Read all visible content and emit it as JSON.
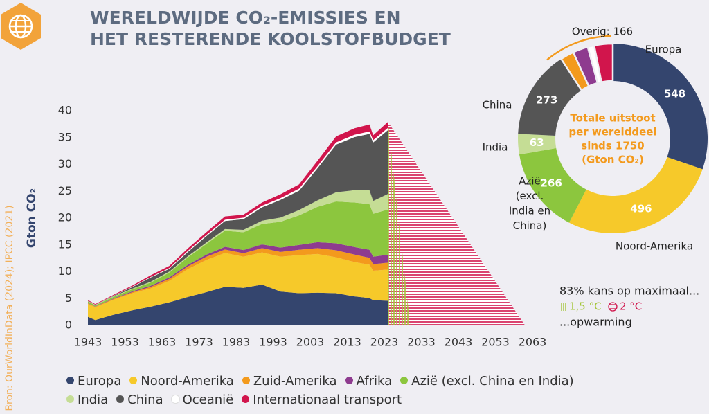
{
  "title": [
    "WERELDWIJDE CO₂-EMISSIES EN",
    "HET RESTERENDE KOOLSTOFBUDGET"
  ],
  "source": "Bron: OurWorldInData (2024); IPCC (2021)",
  "chart_data": [
    {
      "type": "area",
      "stacked": true,
      "y_label": "Gton CO₂",
      "xlim": [
        1943,
        2063
      ],
      "ylim": [
        0,
        40
      ],
      "xticks": [
        1943,
        1953,
        1963,
        1973,
        1983,
        1993,
        2003,
        2013,
        2023,
        2033,
        2043,
        2053,
        2063
      ],
      "yticks": [
        0,
        5,
        10,
        15,
        20,
        25,
        30,
        35,
        40
      ],
      "grid": false,
      "x": [
        1943,
        1945,
        1950,
        1955,
        1960,
        1965,
        1970,
        1975,
        1980,
        1985,
        1990,
        1995,
        2000,
        2005,
        2010,
        2015,
        2019,
        2020,
        2024
      ],
      "series": [
        {
          "name": "Europa",
          "color": "#34456e",
          "values": [
            1.6,
            1.0,
            2.0,
            2.8,
            3.5,
            4.3,
            5.3,
            6.2,
            7.2,
            7.0,
            7.6,
            6.3,
            6.0,
            6.1,
            6.0,
            5.4,
            5.1,
            4.7,
            4.6
          ]
        },
        {
          "name": "Noord-Amerika",
          "color": "#f6c92a",
          "values": [
            2.4,
            2.4,
            2.8,
            3.2,
            3.4,
            4.0,
            5.2,
            6.0,
            6.3,
            5.8,
            6.0,
            6.5,
            7.1,
            7.2,
            6.7,
            6.4,
            6.2,
            5.5,
            5.8
          ]
        },
        {
          "name": "Zuid-Amerika",
          "color": "#f39a1d",
          "values": [
            0.1,
            0.1,
            0.15,
            0.2,
            0.3,
            0.4,
            0.5,
            0.6,
            0.65,
            0.65,
            0.8,
            0.9,
            1.0,
            1.1,
            1.3,
            1.4,
            1.3,
            1.2,
            1.3
          ]
        },
        {
          "name": "Afrika",
          "color": "#8e3b8f",
          "values": [
            0.05,
            0.05,
            0.1,
            0.15,
            0.2,
            0.25,
            0.3,
            0.4,
            0.5,
            0.6,
            0.7,
            0.8,
            0.9,
            1.1,
            1.3,
            1.4,
            1.5,
            1.4,
            1.5
          ]
        },
        {
          "name": "Azië (excl. China en India)",
          "color": "#8cc63e",
          "values": [
            0.3,
            0.2,
            0.3,
            0.4,
            0.6,
            0.9,
            1.4,
            2.0,
            3.0,
            3.3,
            3.8,
            4.8,
            5.5,
            6.6,
            7.8,
            8.3,
            8.5,
            8.0,
            8.4
          ]
        },
        {
          "name": "India",
          "color": "#c5dd95",
          "values": [
            0.05,
            0.05,
            0.1,
            0.1,
            0.15,
            0.2,
            0.2,
            0.25,
            0.3,
            0.45,
            0.6,
            0.8,
            1.0,
            1.2,
            1.7,
            2.3,
            2.6,
            2.4,
            2.9
          ]
        },
        {
          "name": "China",
          "color": "#555555",
          "values": [
            0.05,
            0.03,
            0.08,
            0.3,
            0.8,
            0.5,
            0.8,
            1.2,
            1.5,
            2.0,
            2.5,
            3.3,
            3.6,
            6.0,
            8.9,
            9.9,
            10.5,
            10.9,
            11.9
          ]
        },
        {
          "name": "Oceanië",
          "color": "#ffffff",
          "values": [
            0.03,
            0.03,
            0.05,
            0.08,
            0.1,
            0.15,
            0.2,
            0.22,
            0.25,
            0.28,
            0.3,
            0.33,
            0.38,
            0.4,
            0.42,
            0.44,
            0.45,
            0.43,
            0.43
          ]
        },
        {
          "name": "Internationaal transport",
          "color": "#d1154c",
          "values": [
            0.15,
            0.1,
            0.15,
            0.2,
            0.3,
            0.4,
            0.45,
            0.5,
            0.6,
            0.55,
            0.6,
            0.7,
            0.8,
            1.0,
            1.1,
            1.2,
            1.3,
            0.9,
            1.1
          ]
        }
      ],
      "budgets": [
        {
          "name": "1,5 °C",
          "color": "#a5c63b",
          "hatch": "vertical",
          "x": [
            2024,
            2030
          ],
          "values": [
            37.9,
            0
          ]
        },
        {
          "name": "2 °C",
          "color": "#d1154c",
          "hatch": "horizontal",
          "x": [
            2024,
            2061
          ],
          "values": [
            37.9,
            0
          ]
        }
      ],
      "annotation": {
        "intro": "83% kans op maximaal...",
        "outro": "...opwarming"
      }
    },
    {
      "type": "donut",
      "center_lines": [
        "Totale uitstoot",
        "per werelddeel",
        "sinds 1750",
        "(Gton CO₂)"
      ],
      "slices": [
        {
          "name": "Europa",
          "value": 548,
          "color": "#34456e"
        },
        {
          "name": "Noord-Amerika",
          "value": 496,
          "color": "#f6c92a"
        },
        {
          "name": [
            "Azië",
            "(excl.",
            "India en",
            "China)"
          ],
          "value": 266,
          "color": "#8cc63e"
        },
        {
          "name": "India",
          "value": 63,
          "color": "#c5dd95"
        },
        {
          "name": "China",
          "value": 273,
          "color": "#555555"
        }
      ],
      "other": {
        "label": "Overig: 166",
        "value": 166,
        "color": "#f39a1d",
        "parts": [
          {
            "value": 42,
            "color": "#f39a1d"
          },
          {
            "value": 47,
            "color": "#8e3b8f"
          },
          {
            "value": 20,
            "color": "#ffffff"
          },
          {
            "value": 57,
            "color": "#d1154c"
          }
        ]
      }
    }
  ]
}
